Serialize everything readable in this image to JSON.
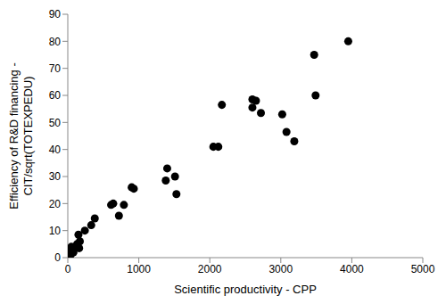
{
  "chart_data": {
    "type": "scatter",
    "xlabel": "Scientific productivity  -  CPP",
    "ylabel": [
      "Efficiency of R&D financing  -",
      "CIT/sqrt(TOTEXPEDU)"
    ],
    "x": [
      3950,
      3470,
      3490,
      2600,
      2650,
      2170,
      2600,
      2720,
      3020,
      3080,
      3190,
      2050,
      2120,
      1400,
      1510,
      1380,
      1530,
      900,
      930,
      610,
      640,
      790,
      720,
      380,
      330,
      240,
      150,
      170,
      130,
      50,
      100,
      160,
      30,
      60,
      20,
      10,
      5,
      15,
      40,
      80,
      0
    ],
    "values": [
      80,
      75,
      60,
      58.5,
      58,
      56.5,
      55.5,
      53.5,
      53,
      46.5,
      43,
      41,
      41,
      33,
      30,
      28.5,
      23.5,
      26,
      25.5,
      19.5,
      20,
      19.5,
      15.5,
      14.5,
      12,
      10,
      8.5,
      6,
      5,
      4,
      3.5,
      3.5,
      3,
      2.5,
      2,
      1.5,
      1,
      0.5,
      1,
      2,
      0.3
    ],
    "color": "#000000",
    "marker": "circle",
    "xlim": [
      0,
      5000
    ],
    "xticks": [
      0,
      1000,
      2000,
      3000,
      4000,
      5000
    ],
    "ylim": [
      0,
      90
    ],
    "yticks": [
      0,
      10,
      20,
      30,
      40,
      50,
      60,
      70,
      80,
      90
    ],
    "grid": false
  }
}
